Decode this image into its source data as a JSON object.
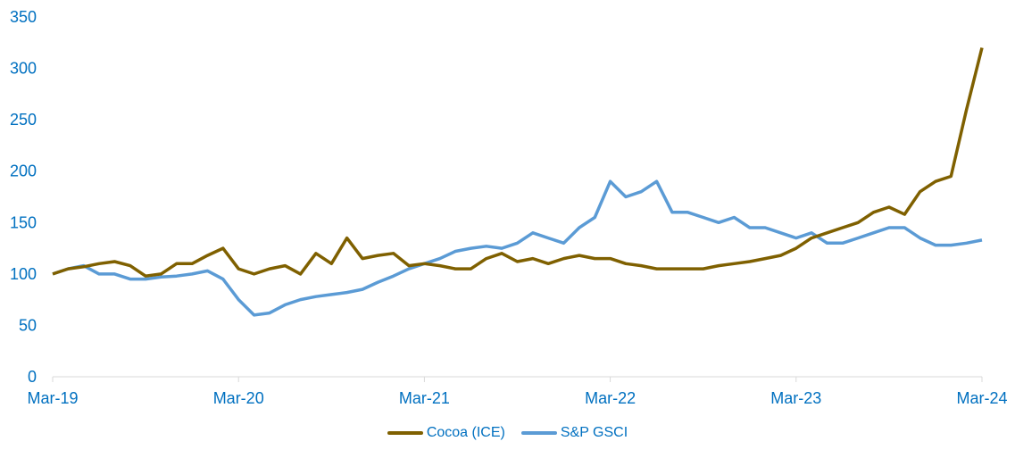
{
  "chart_data": {
    "type": "line",
    "title": "",
    "xlabel": "",
    "ylabel": "",
    "ylim": [
      0,
      350
    ],
    "yticks": [
      0,
      50,
      100,
      150,
      200,
      250,
      300,
      350
    ],
    "xticks": [
      "Mar-19",
      "Mar-20",
      "Mar-21",
      "Mar-22",
      "Mar-23",
      "Mar-24"
    ],
    "x_frequency": "monthly, Mar-19 to Mar-24",
    "legend_position": "bottom",
    "grid": false,
    "series": [
      {
        "name": "Cocoa (ICE)",
        "color": "#7F6000",
        "values": [
          100,
          105,
          107,
          110,
          112,
          108,
          98,
          100,
          110,
          110,
          118,
          125,
          105,
          100,
          105,
          108,
          100,
          120,
          110,
          135,
          115,
          118,
          120,
          108,
          110,
          108,
          105,
          105,
          115,
          120,
          112,
          115,
          110,
          115,
          118,
          115,
          115,
          110,
          108,
          105,
          105,
          105,
          105,
          108,
          110,
          112,
          115,
          118,
          125,
          135,
          140,
          145,
          150,
          160,
          165,
          158,
          180,
          190,
          195,
          260,
          320
        ]
      },
      {
        "name": "S&P GSCI",
        "color": "#5B9BD5",
        "values": [
          100,
          105,
          108,
          100,
          100,
          95,
          95,
          97,
          98,
          100,
          103,
          95,
          75,
          60,
          62,
          70,
          75,
          78,
          80,
          82,
          85,
          92,
          98,
          105,
          110,
          115,
          122,
          125,
          127,
          125,
          130,
          140,
          135,
          130,
          145,
          155,
          190,
          175,
          180,
          190,
          160,
          160,
          155,
          150,
          155,
          145,
          145,
          140,
          135,
          140,
          130,
          130,
          135,
          140,
          145,
          145,
          135,
          128,
          128,
          130,
          133
        ]
      }
    ]
  }
}
